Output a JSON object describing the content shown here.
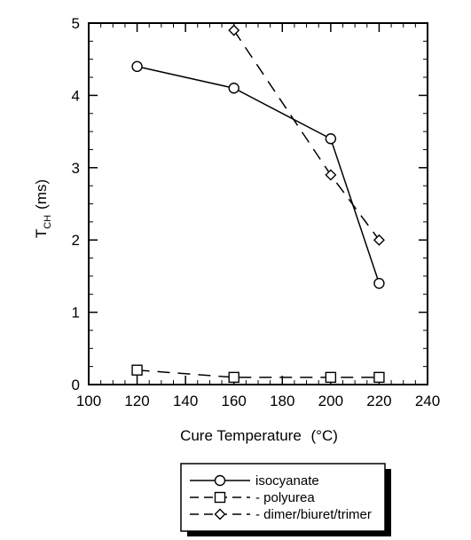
{
  "chart_data": {
    "type": "line",
    "xlabel": "Cure Temperature",
    "xlabel_unit": "(°C)",
    "ylabel_main": "T",
    "ylabel_sub": "CH",
    "ylabel_unit": "(ms)",
    "xlim": [
      100,
      240
    ],
    "ylim": [
      0,
      5
    ],
    "x_ticks": [
      100,
      120,
      140,
      160,
      180,
      200,
      220,
      240
    ],
    "y_ticks": [
      0,
      1,
      2,
      3,
      4,
      5
    ],
    "grid": false,
    "legend_position": "bottom",
    "series": [
      {
        "name": "isocyanate",
        "marker": "circle",
        "line": "solid",
        "x": [
          120,
          160,
          200,
          220
        ],
        "y": [
          4.4,
          4.1,
          3.4,
          1.4
        ]
      },
      {
        "name": "- polyurea",
        "marker": "square",
        "line": "dashed",
        "x": [
          120,
          160,
          200,
          220
        ],
        "y": [
          0.2,
          0.1,
          0.1,
          0.1
        ]
      },
      {
        "name": "- dimer/biuret/trimer",
        "marker": "diamond",
        "line": "dashed",
        "x": [
          160,
          200,
          220
        ],
        "y": [
          4.9,
          2.9,
          2.0
        ]
      }
    ]
  }
}
